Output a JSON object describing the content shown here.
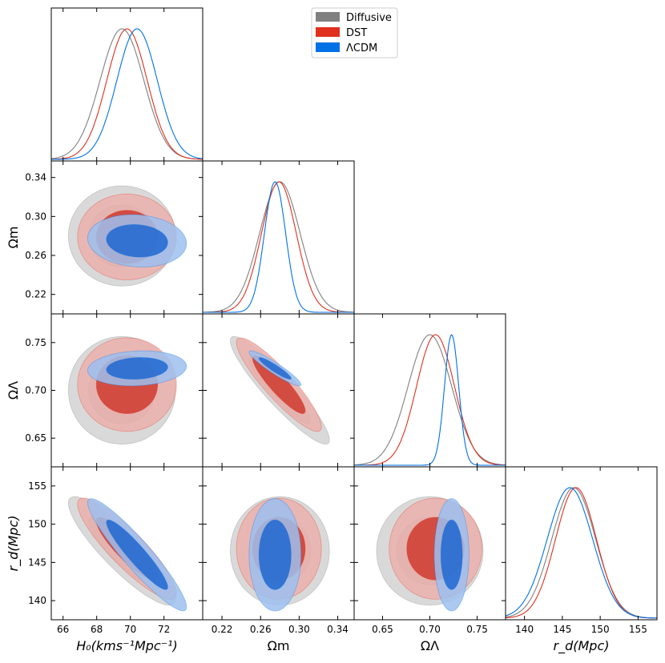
{
  "chart_data": {
    "type": "triangle-corner-plot",
    "parameters": [
      {
        "key": "H0",
        "label": "H₀(kms⁻¹Mpc⁻¹)",
        "range": [
          65.3,
          74.3
        ],
        "ticks": [
          "66",
          "68",
          "70",
          "72"
        ],
        "tick_values": [
          66,
          68,
          70,
          72
        ]
      },
      {
        "key": "Om",
        "label": "Ωm",
        "range": [
          0.2,
          0.357
        ],
        "ticks": [
          "0.22",
          "0.26",
          "0.30",
          "0.34"
        ],
        "tick_values": [
          0.22,
          0.26,
          0.3,
          0.34
        ]
      },
      {
        "key": "OL",
        "label": "ΩΛ",
        "range": [
          0.62,
          0.78
        ],
        "ticks": [
          "0.65",
          "0.70",
          "0.75"
        ],
        "tick_values": [
          0.65,
          0.7,
          0.75
        ]
      },
      {
        "key": "rd",
        "label": "r_d(Mpc)",
        "range": [
          137.5,
          157.5
        ],
        "ticks": [
          "140",
          "145",
          "150",
          "155"
        ],
        "tick_values": [
          140,
          145,
          150,
          155
        ]
      }
    ],
    "legend": {
      "placement": "top-center",
      "entries": [
        {
          "name": "Diffusive",
          "color": "#808080"
        },
        {
          "name": "DST",
          "color": "#e0301e"
        },
        {
          "name": "ΛCDM",
          "color": "#0072e6"
        }
      ]
    },
    "series": [
      {
        "name": "Diffusive",
        "color": "#808080",
        "inner_fill": "#bcbcbc",
        "outer_fill": "#d2d2d2",
        "means": [
          69.5,
          0.28,
          0.7,
          146.5
        ],
        "sigmas": [
          1.3,
          0.021,
          0.023,
          2.9
        ],
        "corr": {
          "H0-Om": 0.0,
          "H0-OL": 0.0,
          "H0-rd": -0.88,
          "Om-OL": -0.92,
          "Om-rd": 0.0,
          "OL-rd": 0.0
        }
      },
      {
        "name": "DST",
        "color": "#e0301e",
        "inner_fill": "#d03a2e",
        "outer_fill": "#ebb0ab",
        "means": [
          69.8,
          0.279,
          0.706,
          146.8
        ],
        "sigmas": [
          1.2,
          0.018,
          0.02,
          2.7
        ],
        "corr": {
          "H0-Om": 0.0,
          "H0-OL": 0.0,
          "H0-rd": -0.88,
          "Om-OL": -0.9,
          "Om-rd": 0.0,
          "OL-rd": 0.0
        }
      },
      {
        "name": "ΛCDM",
        "color": "#0072e6",
        "inner_fill": "#1f67d0",
        "outer_fill": "#9cc0ee",
        "means": [
          70.4,
          0.275,
          0.723,
          146.0
        ],
        "sigmas": [
          1.2,
          0.011,
          0.0075,
          3.0
        ],
        "corr": {
          "H0-Om": -0.1,
          "H0-OL": 0.12,
          "H0-rd": -0.93,
          "Om-OL": -0.93,
          "Om-rd": 0.0,
          "OL-rd": 0.0
        }
      }
    ],
    "legend_colors_swatch": true
  }
}
